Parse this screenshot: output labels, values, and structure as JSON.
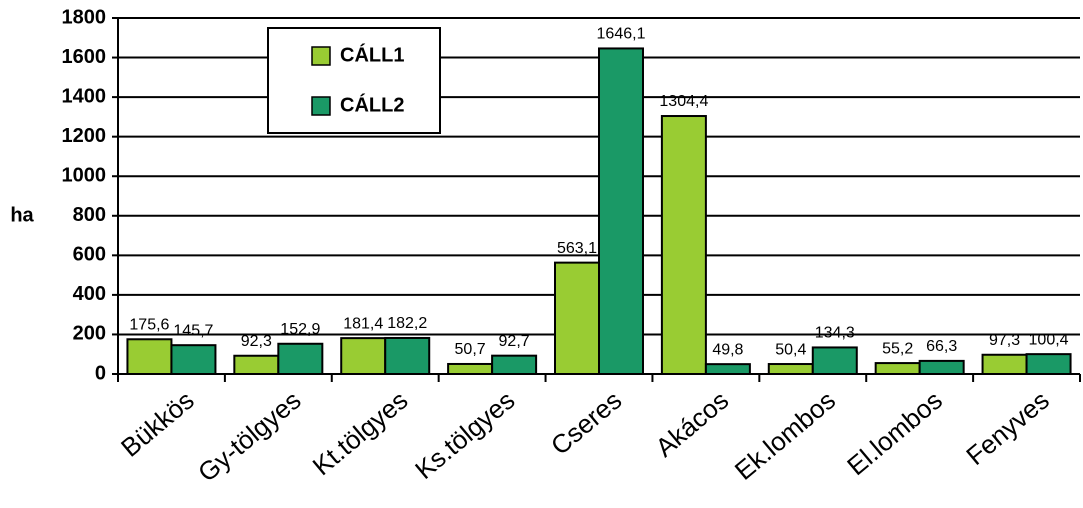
{
  "chart_data": {
    "type": "bar",
    "y_label": "ha",
    "categories": [
      "Bükkös",
      "Gy-tölgyes",
      "Kt.tölgyes",
      "Ks.tölgyes",
      "Cseres",
      "Akácos",
      "Ek.lombos",
      "El.lombos",
      "Fenyves"
    ],
    "series": [
      {
        "name": "CÁLL1",
        "color": "#99cc33",
        "values": [
          175.6,
          92.3,
          181.4,
          50.7,
          563.1,
          1304.4,
          50.4,
          55.2,
          97.3
        ],
        "value_labels": [
          "175,6",
          "92,3",
          "181,4",
          "50,7",
          "563,1",
          "1304,4",
          "50,4",
          "55,2",
          "97,3"
        ]
      },
      {
        "name": "CÁLL2",
        "color": "#1a9966",
        "values": [
          145.7,
          152.9,
          182.2,
          92.7,
          1646.1,
          49.8,
          134.3,
          66.3,
          100.4
        ],
        "value_labels": [
          "145,7",
          "152,9",
          "182,2",
          "92,7",
          "1646,1",
          "49,8",
          "134,3",
          "66,3",
          "100,4"
        ]
      }
    ],
    "ylim": [
      0,
      1800
    ],
    "yticks": [
      0,
      200,
      400,
      600,
      800,
      1000,
      1200,
      1400,
      1600,
      1800
    ],
    "grid": true
  }
}
